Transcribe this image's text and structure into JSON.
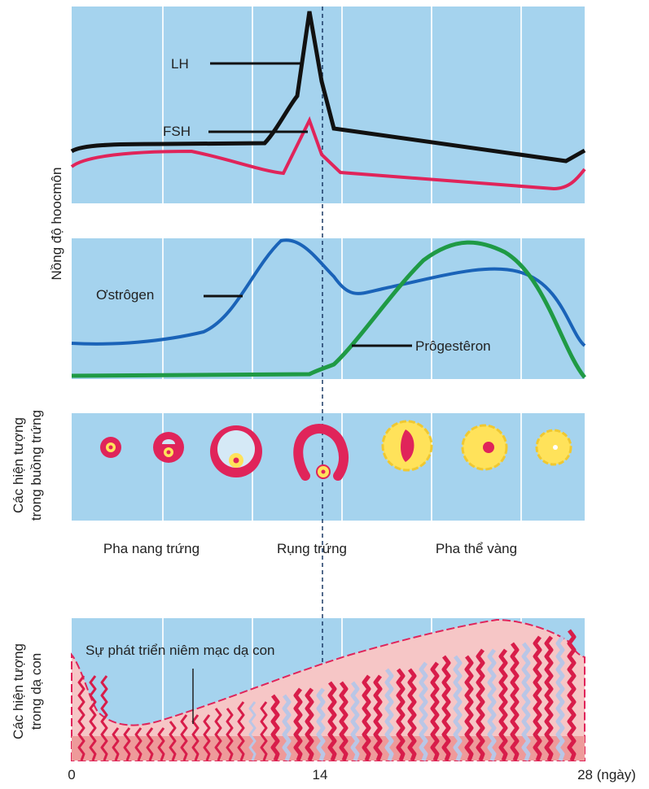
{
  "y_axis_labels": {
    "hormone": "Nồng độ hoocmôn",
    "ovary": [
      "Các hiện tượng",
      "trong buồng trứng"
    ],
    "uterus": [
      "Các hiện tượng",
      "trong dạ con"
    ]
  },
  "hormone_panel": {
    "lh": "LH",
    "fsh": "FSH"
  },
  "steroid_panel": {
    "estrogen": "Ơstrôgen",
    "progesterone": "Prôgestêron"
  },
  "phases": [
    "Pha nang trứng",
    "Rụng trứng",
    "Pha thể vàng"
  ],
  "uterus_panel": {
    "label": "Sự phát triển niêm mạc dạ con"
  },
  "x_axis": [
    "0",
    "14",
    "28 (ngày)"
  ]
}
